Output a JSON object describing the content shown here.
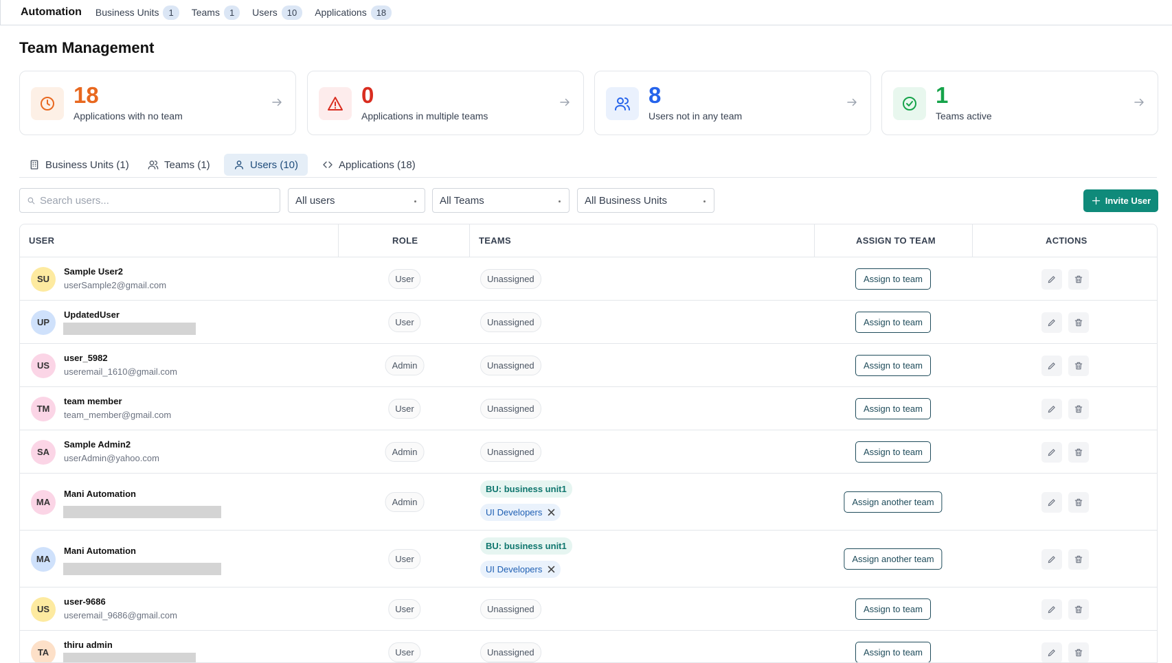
{
  "nav": {
    "brand": "Automation",
    "items": [
      {
        "label": "Business Units",
        "count": 1
      },
      {
        "label": "Teams",
        "count": 1
      },
      {
        "label": "Users",
        "count": 10
      },
      {
        "label": "Applications",
        "count": 18
      }
    ]
  },
  "page_title": "Team Management",
  "stats": [
    {
      "value": 18,
      "label": "Applications with no team",
      "color": "#e8681f",
      "bg": "#fdf0e6",
      "icon": "clock"
    },
    {
      "value": 0,
      "label": "Applications in multiple teams",
      "color": "#d92d20",
      "bg": "#fdecec",
      "icon": "alert"
    },
    {
      "value": 8,
      "label": "Users not in any team",
      "color": "#2563eb",
      "bg": "#eaf1fd",
      "icon": "users"
    },
    {
      "value": 1,
      "label": "Teams active",
      "color": "#16a34a",
      "bg": "#e8f7ee",
      "icon": "check"
    }
  ],
  "tabs": [
    {
      "label": "Business Units (1)",
      "icon": "building",
      "active": false
    },
    {
      "label": "Teams (1)",
      "icon": "users",
      "active": false
    },
    {
      "label": "Users (10)",
      "icon": "user",
      "active": true
    },
    {
      "label": "Applications (18)",
      "icon": "code",
      "active": false
    }
  ],
  "filters": {
    "search_placeholder": "Search users...",
    "selects": [
      "All users",
      "All Teams",
      "All Business Units"
    ],
    "invite_button": "Invite User"
  },
  "table": {
    "headers": [
      "USER",
      "ROLE",
      "TEAMS",
      "ASSIGN TO TEAM",
      "ACTIONS"
    ],
    "rows": [
      {
        "initials": "SU",
        "avatar_color": "#fdeaa0",
        "name": "Sample User2",
        "email": "userSample2@gmail.com",
        "role": "User",
        "teams": {
          "status": "Unassigned"
        },
        "assign": "Assign to team"
      },
      {
        "initials": "UP",
        "avatar_color": "#cfe1fb",
        "name": "UpdatedUser",
        "role": "User",
        "teams": {
          "status": "Unassigned"
        },
        "assign": "Assign to team"
      },
      {
        "initials": "US",
        "avatar_color": "#fbd5e6",
        "name": "user_5982",
        "email": "useremail_1610@gmail.com",
        "role": "Admin",
        "teams": {
          "status": "Unassigned"
        },
        "assign": "Assign to team"
      },
      {
        "initials": "TM",
        "avatar_color": "#fbd5e6",
        "name": "team member",
        "email": "team_member@gmail.com",
        "role": "User",
        "teams": {
          "status": "Unassigned"
        },
        "assign": "Assign to team"
      },
      {
        "initials": "SA",
        "avatar_color": "#fbd5e6",
        "name": "Sample Admin2",
        "email": "userAdmin@yahoo.com",
        "role": "Admin",
        "teams": {
          "status": "Unassigned"
        },
        "assign": "Assign to team"
      },
      {
        "initials": "MA",
        "avatar_color": "#fbd5e6",
        "name": "Mani Automation",
        "role": "Admin",
        "teams": {
          "business_unit": "BU: business unit1",
          "team": "UI Developers"
        },
        "assign": "Assign another team"
      },
      {
        "initials": "MA",
        "avatar_color": "#cfe1fb",
        "name": "Mani Automation",
        "role": "User",
        "teams": {
          "business_unit": "BU: business unit1",
          "team": "UI Developers"
        },
        "assign": "Assign another team"
      },
      {
        "initials": "US",
        "avatar_color": "#fdeaa0",
        "name": "user-9686",
        "email": "useremail_9686@gmail.com",
        "role": "User",
        "teams": {
          "status": "Unassigned"
        },
        "assign": "Assign to team"
      },
      {
        "initials": "TA",
        "avatar_color": "#fde0c8",
        "name": "thiru admin",
        "role": "User",
        "teams": {
          "status": "Unassigned"
        },
        "assign": "Assign to team"
      }
    ]
  }
}
